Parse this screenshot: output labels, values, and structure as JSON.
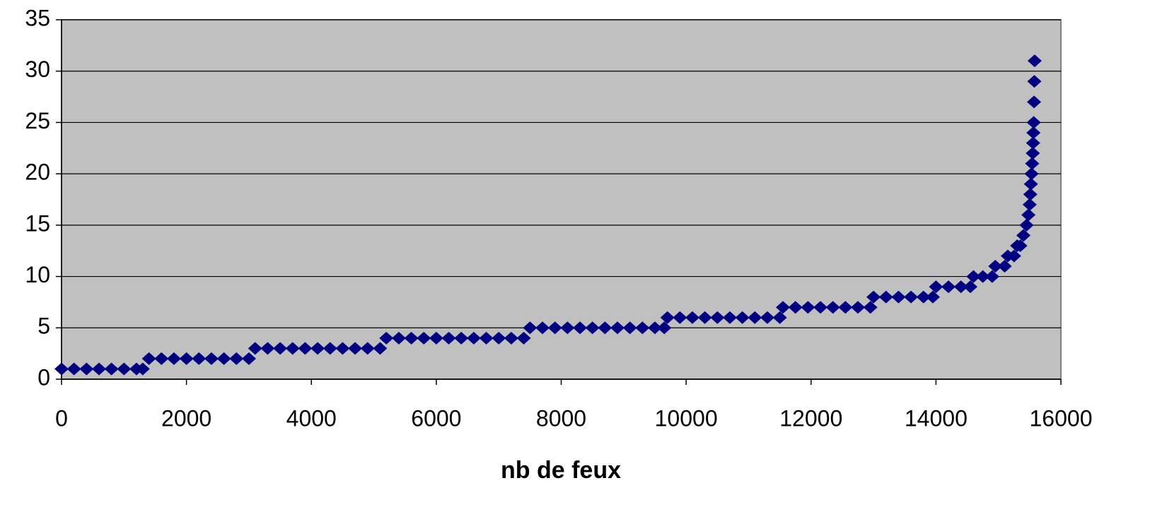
{
  "chart_data": {
    "type": "scatter",
    "xlabel": "nb de feux",
    "color": "#000080",
    "grid": true,
    "xlim": [
      0,
      16000
    ],
    "xticks": [
      0,
      2000,
      4000,
      6000,
      8000,
      10000,
      12000,
      14000,
      16000
    ],
    "ylim": [
      0,
      35
    ],
    "yticks": [
      0,
      5,
      10,
      15,
      20,
      25,
      30,
      35
    ],
    "x": [
      0,
      200,
      400,
      600,
      800,
      1000,
      1200,
      1300,
      1400,
      1600,
      1800,
      2000,
      2200,
      2400,
      2600,
      2800,
      3000,
      3100,
      3300,
      3500,
      3700,
      3900,
      4100,
      4300,
      4500,
      4700,
      4900,
      5100,
      5200,
      5400,
      5600,
      5800,
      6000,
      6200,
      6400,
      6600,
      6800,
      7000,
      7200,
      7400,
      7500,
      7700,
      7900,
      8100,
      8300,
      8500,
      8700,
      8900,
      9100,
      9300,
      9500,
      9650,
      9700,
      9900,
      10100,
      10300,
      10500,
      10700,
      10900,
      11100,
      11300,
      11500,
      11550,
      11750,
      11950,
      12150,
      12350,
      12550,
      12750,
      12950,
      13000,
      13200,
      13400,
      13600,
      13800,
      13950,
      14000,
      14200,
      14400,
      14550,
      14600,
      14750,
      14900,
      14950,
      15100,
      15150,
      15250,
      15300,
      15350,
      15400,
      15450,
      15480,
      15500,
      15510,
      15520,
      15530,
      15540,
      15550,
      15555,
      15560,
      15565,
      15570,
      15575,
      15580
    ],
    "y": [
      1,
      1,
      1,
      1,
      1,
      1,
      1,
      1,
      2,
      2,
      2,
      2,
      2,
      2,
      2,
      2,
      2,
      3,
      3,
      3,
      3,
      3,
      3,
      3,
      3,
      3,
      3,
      3,
      4,
      4,
      4,
      4,
      4,
      4,
      4,
      4,
      4,
      4,
      4,
      4,
      5,
      5,
      5,
      5,
      5,
      5,
      5,
      5,
      5,
      5,
      5,
      5,
      6,
      6,
      6,
      6,
      6,
      6,
      6,
      6,
      6,
      6,
      7,
      7,
      7,
      7,
      7,
      7,
      7,
      7,
      8,
      8,
      8,
      8,
      8,
      8,
      9,
      9,
      9,
      9,
      10,
      10,
      10,
      11,
      11,
      12,
      12,
      13,
      13,
      14,
      15,
      16,
      17,
      18,
      19,
      20,
      21,
      22,
      23,
      24,
      25,
      27,
      29,
      31
    ]
  }
}
